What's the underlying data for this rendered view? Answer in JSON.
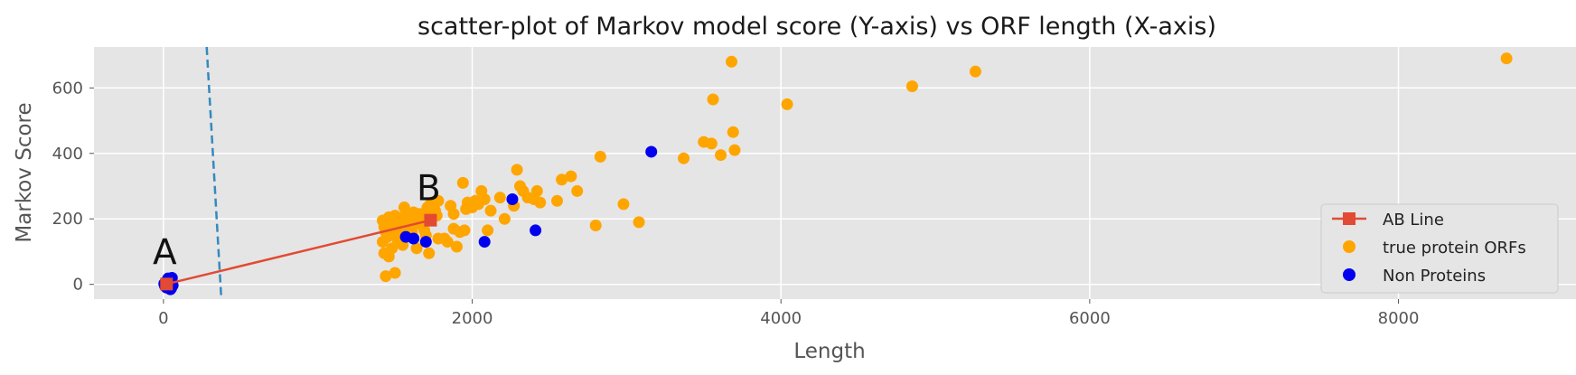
{
  "chart_data": {
    "type": "scatter",
    "title": "scatter-plot of Markov model score (Y-axis) vs ORF length (X-axis)",
    "xlabel": "Length",
    "ylabel": "Markov Score",
    "xlim": [
      -450,
      9150
    ],
    "ylim": [
      -45,
      725
    ],
    "xticks": [
      0,
      2000,
      4000,
      6000,
      8000
    ],
    "yticks": [
      0,
      200,
      400,
      600
    ],
    "grid": true,
    "legend_position": "lower-right",
    "ab_line": {
      "name": "AB Line",
      "color": "#e24a33",
      "points": [
        {
          "label": "A",
          "x": 20,
          "y": 1
        },
        {
          "label": "B",
          "x": 1730,
          "y": 196
        }
      ]
    },
    "boundary_line": {
      "color": "#348abd",
      "x1": 280,
      "y1": 725,
      "x2": 375,
      "y2": -45
    },
    "series": [
      {
        "name": "true protein ORFs",
        "color": "#ffa500",
        "points": [
          [
            1420,
            195
          ],
          [
            1430,
            175
          ],
          [
            1440,
            160
          ],
          [
            1450,
            145
          ],
          [
            1460,
            205
          ],
          [
            1470,
            185
          ],
          [
            1480,
            170
          ],
          [
            1490,
            150
          ],
          [
            1500,
            210
          ],
          [
            1510,
            195
          ],
          [
            1520,
            180
          ],
          [
            1530,
            165
          ],
          [
            1540,
            140
          ],
          [
            1550,
            120
          ],
          [
            1560,
            235
          ],
          [
            1570,
            215
          ],
          [
            1580,
            200
          ],
          [
            1590,
            190
          ],
          [
            1600,
            175
          ],
          [
            1610,
            160
          ],
          [
            1620,
            220
          ],
          [
            1630,
            205
          ],
          [
            1640,
            195
          ],
          [
            1650,
            185
          ],
          [
            1660,
            215
          ],
          [
            1670,
            200
          ],
          [
            1680,
            180
          ],
          [
            1690,
            165
          ],
          [
            1700,
            150
          ],
          [
            1710,
            235
          ],
          [
            1720,
            220
          ],
          [
            1730,
            245
          ],
          [
            1740,
            250
          ],
          [
            1750,
            240
          ],
          [
            1760,
            225
          ],
          [
            1770,
            210
          ],
          [
            1780,
            255
          ],
          [
            1420,
            130
          ],
          [
            1430,
            95
          ],
          [
            1440,
            25
          ],
          [
            1460,
            85
          ],
          [
            1480,
            110
          ],
          [
            1500,
            35
          ],
          [
            1520,
            130
          ],
          [
            1640,
            110
          ],
          [
            1720,
            95
          ],
          [
            1780,
            140
          ],
          [
            1820,
            140
          ],
          [
            1840,
            130
          ],
          [
            1860,
            240
          ],
          [
            1880,
            215
          ],
          [
            1880,
            170
          ],
          [
            1900,
            115
          ],
          [
            1920,
            160
          ],
          [
            1940,
            310
          ],
          [
            1950,
            165
          ],
          [
            1960,
            230
          ],
          [
            1970,
            250
          ],
          [
            2000,
            235
          ],
          [
            2020,
            255
          ],
          [
            2040,
            245
          ],
          [
            2060,
            285
          ],
          [
            2080,
            260
          ],
          [
            2100,
            165
          ],
          [
            2120,
            225
          ],
          [
            2180,
            265
          ],
          [
            2210,
            200
          ],
          [
            2270,
            240
          ],
          [
            2290,
            350
          ],
          [
            2310,
            300
          ],
          [
            2330,
            285
          ],
          [
            2360,
            265
          ],
          [
            2400,
            260
          ],
          [
            2420,
            285
          ],
          [
            2440,
            250
          ],
          [
            2550,
            255
          ],
          [
            2580,
            320
          ],
          [
            2640,
            330
          ],
          [
            2680,
            285
          ],
          [
            2800,
            180
          ],
          [
            2830,
            390
          ],
          [
            2980,
            245
          ],
          [
            3080,
            190
          ],
          [
            3370,
            385
          ],
          [
            3500,
            435
          ],
          [
            3550,
            430
          ],
          [
            3560,
            565
          ],
          [
            3610,
            395
          ],
          [
            3680,
            680
          ],
          [
            3690,
            465
          ],
          [
            3700,
            410
          ],
          [
            4040,
            550
          ],
          [
            4850,
            605
          ],
          [
            5260,
            650
          ],
          [
            8700,
            690
          ]
        ]
      },
      {
        "name": "Non Proteins",
        "color": "#0000ee",
        "points": [
          [
            5,
            2
          ],
          [
            10,
            -5
          ],
          [
            15,
            5
          ],
          [
            20,
            -10
          ],
          [
            25,
            8
          ],
          [
            30,
            -2
          ],
          [
            35,
            12
          ],
          [
            40,
            -8
          ],
          [
            45,
            15
          ],
          [
            50,
            -12
          ],
          [
            55,
            20
          ],
          [
            60,
            -3
          ],
          [
            30,
            18
          ],
          [
            45,
            -15
          ],
          [
            20,
            10
          ],
          [
            50,
            5
          ],
          [
            1570,
            145
          ],
          [
            1620,
            140
          ],
          [
            1700,
            130
          ],
          [
            2080,
            130
          ],
          [
            2260,
            260
          ],
          [
            2410,
            165
          ],
          [
            3160,
            405
          ]
        ]
      }
    ]
  }
}
